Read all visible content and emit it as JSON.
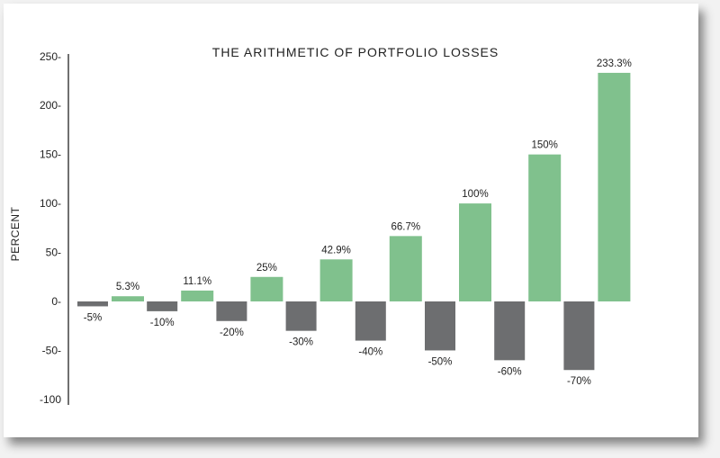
{
  "chart_data": {
    "type": "bar",
    "title": "THE ARITHMETIC OF PORTFOLIO LOSSES",
    "ylabel": "PERCENT",
    "ylim": [
      -100,
      250
    ],
    "yticks": [
      250,
      200,
      150,
      100,
      50,
      0,
      -50,
      -100
    ],
    "ytick_labels": [
      "250-",
      "200-",
      "150-",
      "100-",
      "50-",
      "0-",
      "-50-",
      "-100"
    ],
    "grid": false,
    "colors": {
      "loss": "#6d6e70",
      "gain": "#80c18d"
    },
    "pairs": [
      {
        "loss": -5,
        "loss_label": "-5%",
        "gain": 5.3,
        "gain_label": "5.3%"
      },
      {
        "loss": -10,
        "loss_label": "-10%",
        "gain": 11.1,
        "gain_label": "11.1%"
      },
      {
        "loss": -20,
        "loss_label": "-20%",
        "gain": 25,
        "gain_label": "25%"
      },
      {
        "loss": -30,
        "loss_label": "-30%",
        "gain": 42.9,
        "gain_label": "42.9%"
      },
      {
        "loss": -40,
        "loss_label": "-40%",
        "gain": 66.7,
        "gain_label": "66.7%"
      },
      {
        "loss": -50,
        "loss_label": "-50%",
        "gain": 100,
        "gain_label": "100%"
      },
      {
        "loss": -60,
        "loss_label": "-60%",
        "gain": 150,
        "gain_label": "150%"
      },
      {
        "loss": -70,
        "loss_label": "-70%",
        "gain": 233.3,
        "gain_label": "233.3%"
      }
    ]
  }
}
